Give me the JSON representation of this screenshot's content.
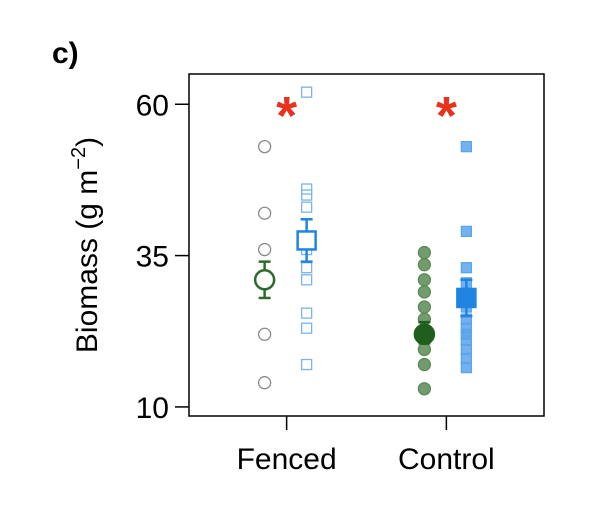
{
  "chart_data": {
    "type": "scatter",
    "panel_label": "c)",
    "ylabel": "Biomass (g m",
    "ylabel_superscript": "−2",
    "ylabel_close": ")",
    "ylim": [
      8.5,
      65
    ],
    "yticks": [
      {
        "value": 10,
        "label": "10"
      },
      {
        "value": 35,
        "label": "35"
      },
      {
        "value": 60,
        "label": "60"
      }
    ],
    "grid": false,
    "legend": "none",
    "categories": [
      "Fenced",
      "Control"
    ],
    "groups": [
      {
        "category": "Fenced",
        "significance": "*",
        "series": [
          {
            "marker": "circle",
            "filled": false,
            "color": "#2e6b2a",
            "point_color": "#8a8a8a",
            "points": [
              14,
              22,
              36,
              42,
              53
            ],
            "mean": 31,
            "err_low": 28,
            "err_high": 34
          },
          {
            "marker": "square",
            "filled": false,
            "color": "#1f84e2",
            "point_color": "#7ab4ee",
            "points": [
              17,
              23,
              25.5,
              31,
              33,
              36,
              38,
              43,
              45,
              46,
              62
            ],
            "mean": 37.5,
            "err_low": 34,
            "err_high": 41
          }
        ]
      },
      {
        "category": "Control",
        "significance": "*",
        "series": [
          {
            "marker": "circle",
            "filled": true,
            "color": "#1f5e1b",
            "point_color": "#5a8a55",
            "points": [
              13,
              17,
              19.5,
              21.5,
              22.5,
              24.5,
              26.5,
              29,
              31,
              33.5,
              35.5
            ],
            "mean": 22,
            "err_low": 20.5,
            "err_high": 24
          },
          {
            "marker": "square",
            "filled": true,
            "color": "#1f84e2",
            "point_color": "#5aa5ec",
            "points": [
              16.5,
              18,
              19.5,
              21,
              22,
              23,
              24.5,
              26.5,
              28.5,
              30.5,
              33,
              39,
              53
            ],
            "mean": 28,
            "err_low": 25,
            "err_high": 31
          }
        ]
      }
    ]
  }
}
